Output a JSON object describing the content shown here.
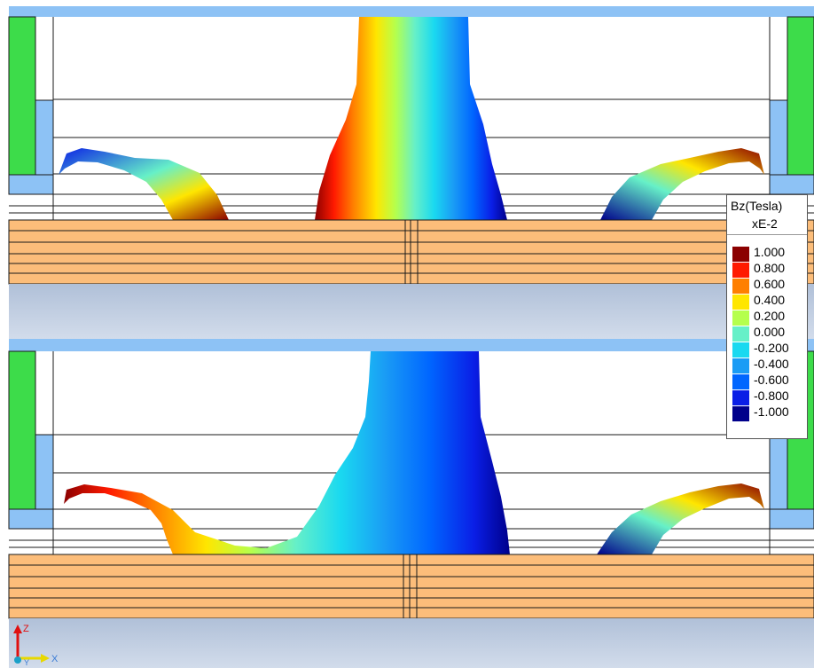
{
  "legend": {
    "title": "Bz(Tesla)",
    "scale": "xE-2",
    "entries": [
      {
        "label": "1.000",
        "color": "#8b0000"
      },
      {
        "label": "0.800",
        "color": "#ff1a00"
      },
      {
        "label": "0.600",
        "color": "#ff7f00"
      },
      {
        "label": "0.400",
        "color": "#ffe600"
      },
      {
        "label": "0.200",
        "color": "#b5ff4d"
      },
      {
        "label": "0.000",
        "color": "#66f0c8"
      },
      {
        "label": "-0.200",
        "color": "#1ad9f0"
      },
      {
        "label": "-0.400",
        "color": "#1a9cf5"
      },
      {
        "label": "-0.600",
        "color": "#0066ff"
      },
      {
        "label": "-0.800",
        "color": "#0a1ee6"
      },
      {
        "label": "-1.000",
        "color": "#00008b"
      }
    ]
  },
  "axes": {
    "z": "Z",
    "x": "X",
    "y": "Y"
  },
  "colors": {
    "frame_blue": "#8dc2f5",
    "magnet_green": "#3ddc4a",
    "plate_orange": "#fcbd7a",
    "base_gray": "#b4c4dc",
    "line": "#1a1a1a"
  }
}
